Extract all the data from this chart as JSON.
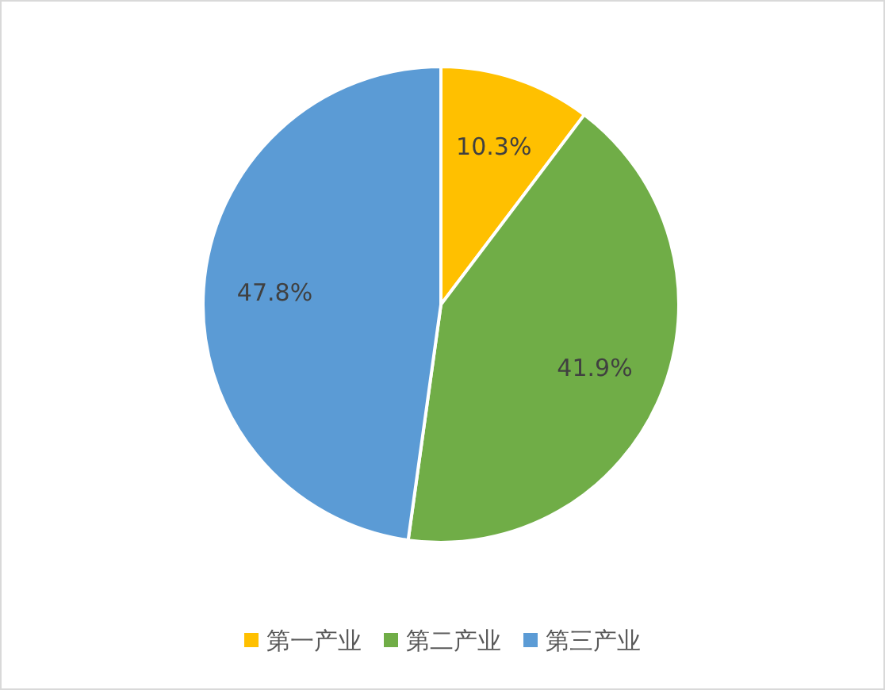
{
  "chart_data": {
    "type": "pie",
    "categories": [
      "第一产业",
      "第二产业",
      "第三产业"
    ],
    "values": [
      10.3,
      41.9,
      47.8
    ],
    "colors": [
      "#ffc000",
      "#70ad47",
      "#5b9bd5"
    ],
    "value_labels": [
      "10.3%",
      "41.9%",
      "47.8%"
    ],
    "legend": "bottom"
  }
}
